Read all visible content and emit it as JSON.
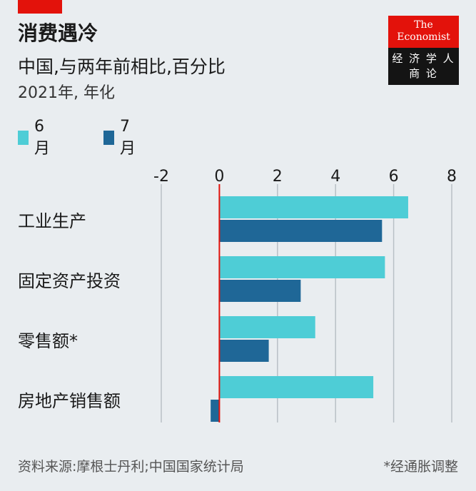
{
  "header": {
    "title": "消费遇冷",
    "subtitle": "中国,与两年前相比,百分比",
    "unit": "2021年, 年化"
  },
  "logo": {
    "the": "The",
    "name": "Economist",
    "line1": "经 济 学 人",
    "line2": "商 论"
  },
  "footer": {
    "source": "资料来源:摩根士丹利;中国国家统计局",
    "note": "*经通胀调整"
  },
  "colors": {
    "june": "#4ecdd6",
    "july": "#1f6797",
    "zero_line": "#e3120b",
    "grid": "#b9c0c6",
    "brand_red": "#e3120b"
  },
  "chart_data": {
    "type": "bar",
    "orientation": "horizontal",
    "categories": [
      "工业生产",
      "固定资产投资",
      "零售额*",
      "房地产销售额"
    ],
    "series": [
      {
        "name": "6月",
        "values": [
          6.5,
          5.7,
          3.3,
          5.3
        ]
      },
      {
        "name": "7月",
        "values": [
          5.6,
          2.8,
          1.7,
          -0.3
        ]
      }
    ],
    "xlim": [
      -2,
      8
    ],
    "xticks": [
      "-2",
      "0",
      "2",
      "4",
      "6",
      "8"
    ],
    "grid": true,
    "legend_position": "top-left"
  }
}
